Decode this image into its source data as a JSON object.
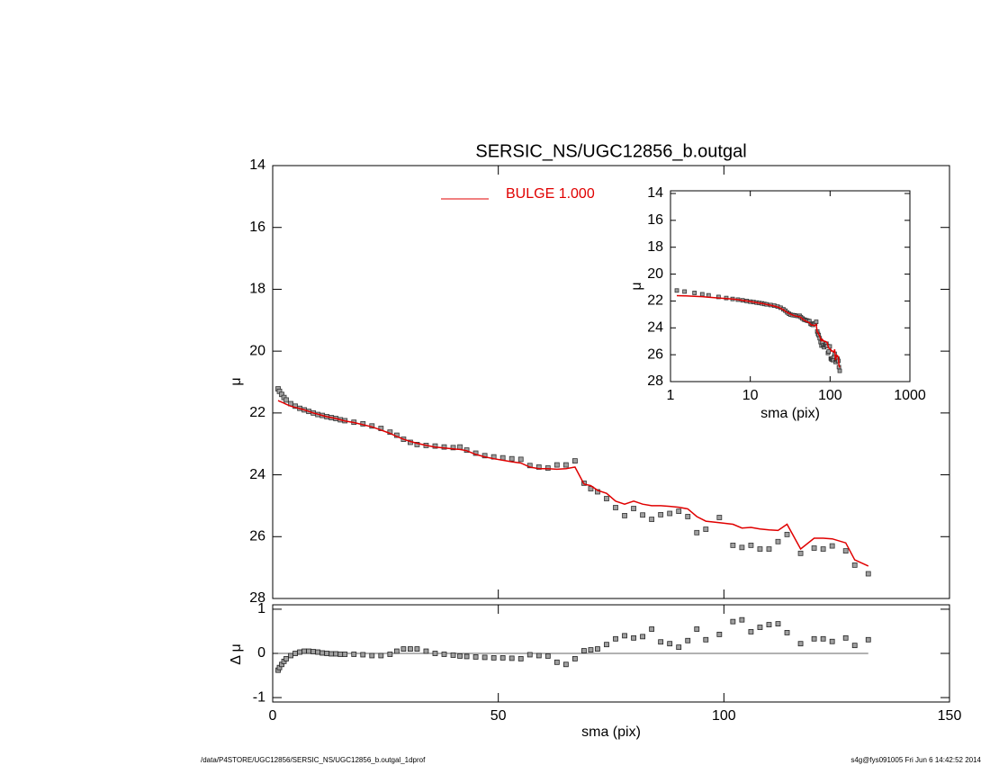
{
  "chart_data": [
    {
      "type": "line",
      "title": "SERSIC_NS/UGC12856_b.outgal",
      "ylabel": "μ",
      "footer_left": "/data/P4STORE/UGC12856/SERSIC_NS/UGC12856_b.outgal_1dprof",
      "footer_right": "s4g@fys091005  Fri Jun  6 14:42:52 2014",
      "legend": "top-center",
      "x": [
        1.2,
        1.5,
        2,
        2.5,
        3,
        4,
        5,
        6,
        7,
        8,
        9,
        10,
        11,
        12,
        13,
        14,
        15,
        16,
        18,
        20,
        22,
        24,
        26,
        27.5,
        29,
        30.5,
        32,
        34,
        36,
        38,
        40,
        41.5,
        43,
        45,
        47,
        49,
        51,
        53,
        55,
        57,
        59,
        61,
        63,
        65,
        67,
        69,
        70.5,
        72,
        74,
        76,
        78,
        80,
        82,
        84,
        86,
        88,
        90,
        92,
        94,
        96,
        99,
        102,
        104,
        106,
        108,
        110,
        112,
        114,
        117,
        120,
        122,
        124,
        127,
        129,
        132
      ],
      "series": [
        {
          "color": "#a0a0a0",
          "marker": "square",
          "values": [
            21.22,
            21.3,
            21.4,
            21.5,
            21.58,
            21.7,
            21.78,
            21.85,
            21.9,
            21.95,
            22.0,
            22.05,
            22.08,
            22.12,
            22.15,
            22.18,
            22.22,
            22.25,
            22.3,
            22.35,
            22.42,
            22.5,
            22.62,
            22.72,
            22.85,
            22.95,
            23.02,
            23.05,
            23.07,
            23.1,
            23.12,
            23.1,
            23.2,
            23.3,
            23.38,
            23.42,
            23.45,
            23.48,
            23.5,
            23.7,
            23.75,
            23.78,
            23.68,
            23.68,
            23.55,
            24.27,
            24.45,
            24.55,
            24.77,
            25.06,
            25.32,
            25.09,
            25.3,
            25.44,
            25.29,
            25.25,
            25.18,
            25.35,
            25.87,
            25.76,
            25.38,
            26.28,
            26.35,
            26.28,
            26.4,
            26.4,
            26.16,
            25.93,
            26.54,
            26.37,
            26.4,
            26.3,
            26.46,
            26.92,
            27.2
          ]
        },
        {
          "name": "BULGE  1.000",
          "color": "#e00000",
          "marker": "line",
          "values": [
            21.6,
            21.62,
            21.65,
            21.68,
            21.72,
            21.78,
            21.82,
            21.86,
            21.9,
            21.95,
            22.0,
            22.04,
            22.08,
            22.12,
            22.15,
            22.18,
            22.22,
            22.26,
            22.31,
            22.38,
            22.45,
            22.55,
            22.66,
            22.76,
            22.85,
            22.92,
            22.98,
            23.05,
            23.1,
            23.13,
            23.16,
            23.18,
            23.22,
            23.34,
            23.42,
            23.48,
            23.53,
            23.58,
            23.62,
            23.75,
            23.8,
            23.8,
            23.82,
            23.8,
            23.75,
            24.3,
            24.35,
            24.5,
            24.6,
            24.85,
            24.95,
            24.85,
            24.95,
            25.0,
            25.0,
            25.02,
            25.05,
            25.1,
            25.35,
            25.5,
            25.55,
            25.6,
            25.72,
            25.7,
            25.75,
            25.78,
            25.8,
            25.6,
            26.4,
            26.05,
            26.05,
            26.07,
            26.2,
            26.75,
            26.95
          ]
        }
      ],
      "xlim": [
        0,
        150
      ],
      "ylim": [
        28,
        14
      ],
      "yticks": [
        14,
        16,
        18,
        20,
        22,
        24,
        26,
        28
      ]
    },
    {
      "type": "scatter",
      "ylabel": "Δ μ",
      "xlabel": "sma (pix)",
      "color": "#a0a0a0",
      "values": [
        -0.38,
        -0.32,
        -0.25,
        -0.18,
        -0.12,
        -0.05,
        0,
        0.03,
        0.05,
        0.05,
        0.04,
        0.03,
        0.01,
        0,
        -0.01,
        -0.01,
        -0.02,
        -0.02,
        -0.02,
        -0.03,
        -0.05,
        -0.05,
        -0.02,
        0.05,
        0.1,
        0.1,
        0.1,
        0.05,
        0,
        -0.02,
        -0.04,
        -0.06,
        -0.07,
        -0.08,
        -0.09,
        -0.1,
        -0.1,
        -0.11,
        -0.12,
        -0.03,
        -0.05,
        -0.06,
        -0.2,
        -0.25,
        -0.12,
        0.06,
        0.08,
        0.1,
        0.2,
        0.33,
        0.4,
        0.35,
        0.38,
        0.55,
        0.26,
        0.22,
        0.14,
        0.29,
        0.55,
        0.31,
        0.43,
        0.72,
        0.76,
        0.49,
        0.59,
        0.65,
        0.67,
        0.47,
        0.22,
        0.33,
        0.33,
        0.27,
        0.35,
        0.18,
        0.31
      ],
      "xlim": [
        0,
        150
      ],
      "xticks": [
        0,
        50,
        100,
        150
      ],
      "ylim": [
        -1.1,
        1.1
      ],
      "yticks": [
        -1,
        0,
        1
      ]
    },
    {
      "type": "inset",
      "xlabel": "sma (pix)",
      "ylabel": "μ",
      "xscale": "log",
      "xlim": [
        1,
        1000
      ],
      "xticks": [
        1,
        10,
        100,
        1000
      ],
      "ylim": [
        28,
        13.8
      ],
      "yticks": [
        14,
        16,
        18,
        20,
        22,
        24,
        26,
        28
      ]
    }
  ]
}
